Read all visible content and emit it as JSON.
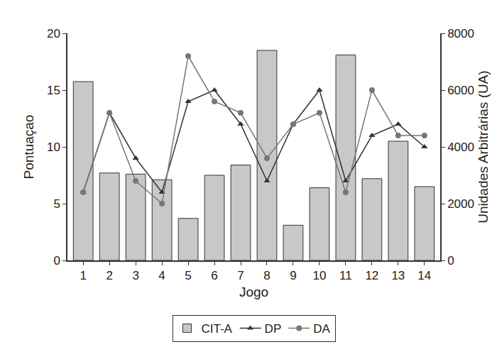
{
  "chart_data": {
    "type": "bar",
    "x_label": "Jogo",
    "y_label": "Pontuaçao",
    "y2_label": "Unidades Arbitrárias (UA)",
    "x": [
      1,
      2,
      3,
      4,
      5,
      6,
      7,
      8,
      9,
      10,
      11,
      12,
      13,
      14
    ],
    "xlim": [
      0.4,
      14.6
    ],
    "xticks": [
      1,
      2,
      3,
      4,
      5,
      6,
      7,
      8,
      9,
      10,
      11,
      12,
      13,
      14
    ],
    "ylim": [
      0,
      20
    ],
    "yticks": [
      0,
      5,
      10,
      15,
      20
    ],
    "y2lim": [
      0,
      8000
    ],
    "y2ticks": [
      0,
      2000,
      4000,
      6000,
      8000
    ],
    "grid": false,
    "legend": "bottom",
    "series": [
      {
        "name": "DP",
        "type": "line",
        "color": "#333333",
        "marker": "triangle",
        "line_style": "solid",
        "values": [
          6,
          13,
          9,
          6,
          14,
          15,
          12,
          7,
          12,
          15,
          7,
          11,
          12,
          10
        ]
      },
      {
        "name": "DA",
        "type": "line",
        "color": "#777777",
        "marker": "circle",
        "line_style": "solid",
        "values": [
          6,
          13,
          7,
          5,
          18,
          14,
          13,
          9,
          12,
          13,
          6,
          15,
          11,
          11
        ]
      },
      {
        "name": "CIT-A",
        "type": "bar",
        "axis": "y2",
        "color": "#c8c8c8",
        "values": [
          6300,
          3080,
          3040,
          2840,
          1480,
          3000,
          3360,
          7400,
          1240,
          2560,
          7240,
          2880,
          4200,
          2600
        ]
      }
    ]
  }
}
